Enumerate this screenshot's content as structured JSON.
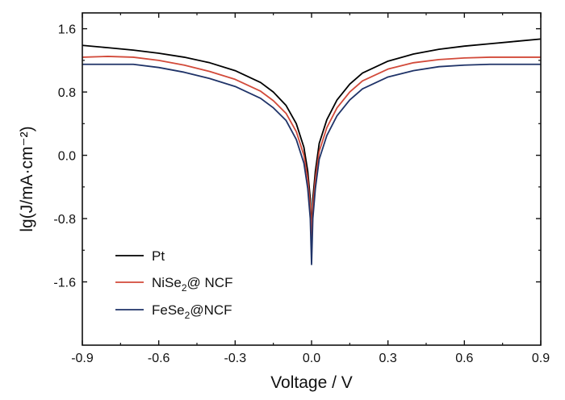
{
  "chart_data": {
    "type": "line",
    "xlabel": "Voltage / V",
    "ylabel": "lg(J/mA·cm⁻²)",
    "xlim": [
      -0.9,
      0.9
    ],
    "ylim": [
      -2.4,
      1.8
    ],
    "x_ticks": [
      -0.9,
      -0.6,
      -0.3,
      0.0,
      0.3,
      0.6,
      0.9
    ],
    "x_tick_labels": [
      "-0.9",
      "-0.6",
      "-0.3",
      "0.0",
      "0.3",
      "0.6",
      "0.9"
    ],
    "y_ticks": [
      1.6,
      0.8,
      0.0,
      -0.8,
      -1.6
    ],
    "y_tick_labels": [
      "1.6",
      "0.8",
      "0.0",
      "-0.8",
      "-1.6"
    ],
    "grid": false,
    "legend_position": "bottom-left",
    "series": [
      {
        "name": "Pt",
        "legend_base": "Pt",
        "legend_sub": "",
        "legend_rest": "",
        "color": "#000000",
        "x": [
          -0.9,
          -0.8,
          -0.7,
          -0.6,
          -0.5,
          -0.4,
          -0.3,
          -0.2,
          -0.15,
          -0.1,
          -0.06,
          -0.03,
          -0.015,
          -0.005,
          0.0,
          0.005,
          0.015,
          0.03,
          0.06,
          0.1,
          0.15,
          0.2,
          0.3,
          0.4,
          0.5,
          0.6,
          0.7,
          0.8,
          0.9
        ],
        "y": [
          1.39,
          1.36,
          1.33,
          1.29,
          1.24,
          1.17,
          1.07,
          0.92,
          0.8,
          0.63,
          0.4,
          0.1,
          -0.2,
          -0.55,
          -0.98,
          -0.55,
          -0.2,
          0.15,
          0.45,
          0.7,
          0.9,
          1.04,
          1.19,
          1.28,
          1.34,
          1.38,
          1.41,
          1.44,
          1.47
        ]
      },
      {
        "name": "NiSe2@ NCF",
        "legend_base": "NiSe",
        "legend_sub": "2",
        "legend_rest": "@ NCF",
        "color": "#d24a3a",
        "x": [
          -0.9,
          -0.8,
          -0.7,
          -0.6,
          -0.5,
          -0.4,
          -0.3,
          -0.2,
          -0.15,
          -0.1,
          -0.06,
          -0.03,
          -0.015,
          -0.005,
          0.0,
          0.005,
          0.015,
          0.03,
          0.06,
          0.1,
          0.15,
          0.2,
          0.3,
          0.4,
          0.5,
          0.6,
          0.7,
          0.8,
          0.9
        ],
        "y": [
          1.24,
          1.25,
          1.24,
          1.2,
          1.14,
          1.06,
          0.96,
          0.81,
          0.69,
          0.53,
          0.3,
          0.0,
          -0.3,
          -0.65,
          -1.05,
          -0.65,
          -0.3,
          0.05,
          0.35,
          0.6,
          0.8,
          0.94,
          1.09,
          1.17,
          1.21,
          1.23,
          1.24,
          1.24,
          1.24
        ]
      },
      {
        "name": "FeSe2@NCF",
        "legend_base": "FeSe",
        "legend_sub": "2",
        "legend_rest": "@NCF",
        "color": "#1f3368",
        "x": [
          -0.9,
          -0.8,
          -0.7,
          -0.6,
          -0.5,
          -0.4,
          -0.3,
          -0.2,
          -0.15,
          -0.1,
          -0.06,
          -0.03,
          -0.015,
          -0.005,
          0.0,
          0.005,
          0.015,
          0.03,
          0.06,
          0.1,
          0.15,
          0.2,
          0.3,
          0.4,
          0.5,
          0.6,
          0.7,
          0.8,
          0.9
        ],
        "y": [
          1.15,
          1.15,
          1.15,
          1.11,
          1.05,
          0.97,
          0.87,
          0.72,
          0.6,
          0.44,
          0.2,
          -0.1,
          -0.42,
          -0.8,
          -1.38,
          -0.8,
          -0.42,
          -0.05,
          0.25,
          0.5,
          0.7,
          0.84,
          0.99,
          1.07,
          1.12,
          1.14,
          1.15,
          1.15,
          1.15
        ]
      }
    ]
  }
}
